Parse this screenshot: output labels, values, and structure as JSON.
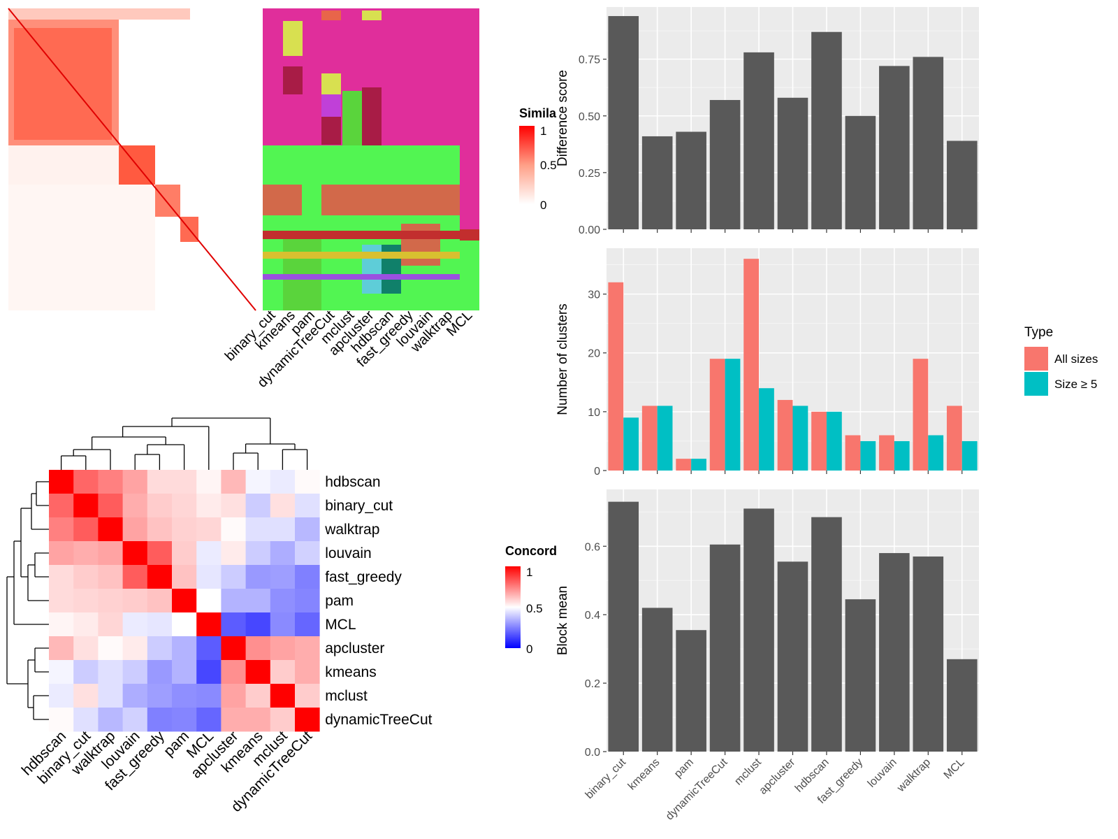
{
  "methods_order": [
    "binary_cut",
    "kmeans",
    "pam",
    "dynamicTreeCut",
    "mclust",
    "apcluster",
    "hdbscan",
    "fast_greedy",
    "louvain",
    "walktrap",
    "MCL"
  ],
  "similarity_panel": {
    "legend_title": "Simila",
    "legend_ticks": [
      "1",
      "0.5",
      "0"
    ],
    "column_labels": [
      "binary_cut",
      "kmeans",
      "pam",
      "dynamicTreeCut",
      "mclust",
      "apcluster",
      "hdbscan",
      "fast_greedy",
      "louvain",
      "walktrap",
      "MCL"
    ]
  },
  "concordance_panel": {
    "legend_title": "Concord",
    "legend_ticks": [
      "1",
      "0.5",
      "0"
    ],
    "row_labels": [
      "hdbscan",
      "binary_cut",
      "walktrap",
      "louvain",
      "fast_greedy",
      "pam",
      "MCL",
      "apcluster",
      "kmeans",
      "mclust",
      "dynamicTreeCut"
    ],
    "col_labels": [
      "hdbscan",
      "binary_cut",
      "walktrap",
      "louvain",
      "fast_greedy",
      "pam",
      "MCL",
      "apcluster",
      "kmeans",
      "mclust",
      "dynamicTreeCut"
    ],
    "matrix": [
      [
        1.0,
        0.8,
        0.75,
        0.68,
        0.57,
        0.57,
        0.52,
        0.64,
        0.48,
        0.46,
        0.51
      ],
      [
        0.8,
        1.0,
        0.82,
        0.66,
        0.6,
        0.58,
        0.54,
        0.56,
        0.4,
        0.56,
        0.44
      ],
      [
        0.75,
        0.82,
        1.0,
        0.68,
        0.62,
        0.59,
        0.58,
        0.51,
        0.44,
        0.44,
        0.36
      ],
      [
        0.68,
        0.66,
        0.68,
        1.0,
        0.82,
        0.6,
        0.46,
        0.54,
        0.4,
        0.34,
        0.41
      ],
      [
        0.57,
        0.6,
        0.62,
        0.82,
        1.0,
        0.62,
        0.45,
        0.4,
        0.3,
        0.31,
        0.25
      ],
      [
        0.57,
        0.58,
        0.59,
        0.6,
        0.62,
        1.0,
        0.5,
        0.35,
        0.35,
        0.28,
        0.26
      ],
      [
        0.52,
        0.54,
        0.58,
        0.46,
        0.45,
        0.5,
        1.0,
        0.18,
        0.14,
        0.27,
        0.2
      ],
      [
        0.64,
        0.56,
        0.51,
        0.54,
        0.4,
        0.35,
        0.18,
        1.0,
        0.72,
        0.68,
        0.66
      ],
      [
        0.48,
        0.4,
        0.44,
        0.4,
        0.3,
        0.35,
        0.14,
        0.72,
        1.0,
        0.6,
        0.66
      ],
      [
        0.46,
        0.56,
        0.44,
        0.34,
        0.31,
        0.28,
        0.27,
        0.68,
        0.6,
        1.0,
        0.6
      ],
      [
        0.51,
        0.44,
        0.36,
        0.41,
        0.25,
        0.26,
        0.2,
        0.66,
        0.66,
        0.6,
        1.0
      ]
    ]
  },
  "chart_data": [
    {
      "type": "bar",
      "categories": [
        "binary_cut",
        "kmeans",
        "pam",
        "dynamicTreeCut",
        "mclust",
        "apcluster",
        "hdbscan",
        "fast_greedy",
        "louvain",
        "walktrap",
        "MCL"
      ],
      "values": [
        0.94,
        0.41,
        0.43,
        0.57,
        0.78,
        0.58,
        0.87,
        0.5,
        0.72,
        0.76,
        0.39
      ],
      "ylabel": "Difference score",
      "yticks": [
        "0.00",
        "0.25",
        "0.50",
        "0.75"
      ],
      "ylim": [
        0,
        0.98
      ]
    },
    {
      "type": "bar",
      "categories": [
        "binary_cut",
        "kmeans",
        "pam",
        "dynamicTreeCut",
        "mclust",
        "apcluster",
        "hdbscan",
        "fast_greedy",
        "louvain",
        "walktrap",
        "MCL"
      ],
      "series": [
        {
          "name": "All sizes",
          "values": [
            32,
            11,
            2,
            19,
            36,
            12,
            10,
            6,
            6,
            19,
            11
          ],
          "color": "#F8766D"
        },
        {
          "name": "Size ≥ 5",
          "values": [
            9,
            11,
            2,
            19,
            14,
            11,
            10,
            5,
            5,
            6,
            5
          ],
          "color": "#00BFC4"
        }
      ],
      "ylabel": "Number of clusters",
      "yticks": [
        "0",
        "10",
        "20",
        "30"
      ],
      "ylim": [
        0,
        37.8
      ],
      "legend_title": "Type",
      "legend_position": "right"
    },
    {
      "type": "bar",
      "categories": [
        "binary_cut",
        "kmeans",
        "pam",
        "dynamicTreeCut",
        "mclust",
        "apcluster",
        "hdbscan",
        "fast_greedy",
        "louvain",
        "walktrap",
        "MCL"
      ],
      "values": [
        0.73,
        0.42,
        0.355,
        0.605,
        0.71,
        0.555,
        0.685,
        0.445,
        0.58,
        0.57,
        0.27
      ],
      "ylabel": "Block mean",
      "yticks": [
        "0.0",
        "0.2",
        "0.4",
        "0.6"
      ],
      "ylim": [
        0,
        0.766
      ]
    }
  ]
}
